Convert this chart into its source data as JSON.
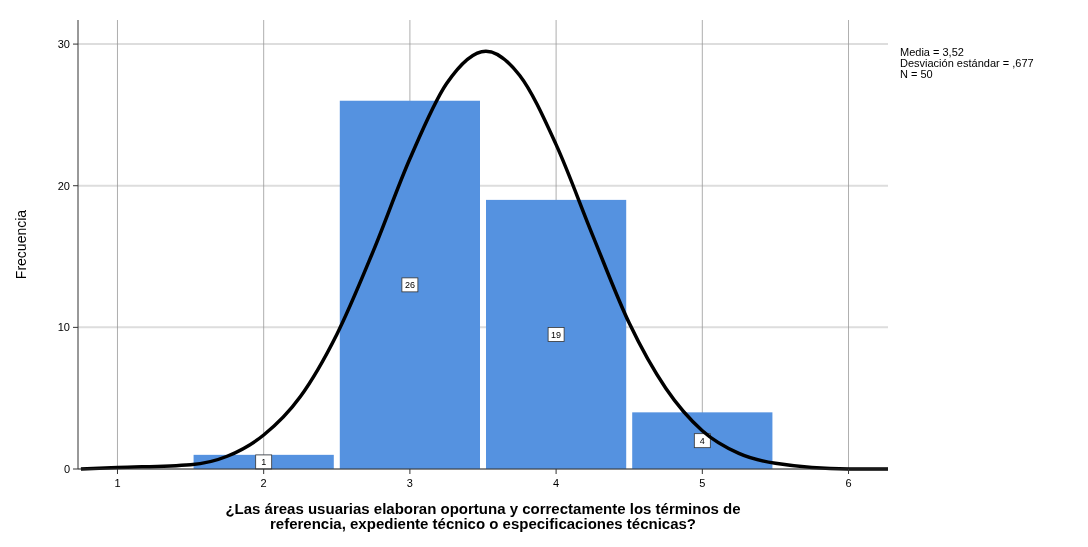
{
  "chart_data": {
    "type": "histogram",
    "xlabel": "¿Las áreas usuarias elaboran oportuna y correctamente los términos de referencia, expediente técnico o especificaciones técnicas?",
    "ylabel": "Frecuencia",
    "bins": [
      1.5,
      2.5,
      3.5,
      4.5,
      5.5
    ],
    "values": [
      1,
      26,
      19,
      4
    ],
    "color": "#5592e0",
    "value_labels": [
      "1",
      "26",
      "19",
      "4"
    ],
    "series": [
      {
        "type": "line",
        "color": "#000000",
        "x": [
          0.75,
          1,
          1.5,
          1.75,
          2,
          2.25,
          2.5,
          2.75,
          3,
          3.25,
          3.52,
          3.75,
          4,
          4.25,
          4.5,
          4.75,
          5,
          5.25,
          5.5,
          6,
          6.27
        ],
        "values": [
          0,
          0.1,
          0.3,
          0.9,
          2.4,
          5.1,
          9.5,
          15.4,
          21.9,
          27.2,
          29.5,
          27.8,
          22.9,
          16.5,
          10.3,
          5.7,
          2.7,
          1.1,
          0.4,
          0,
          0
        ]
      }
    ],
    "xlim": [
      0.73,
      6.27
    ],
    "ylim": [
      0,
      31.7
    ],
    "xticks": [
      1,
      2,
      3,
      4,
      5,
      6
    ],
    "yticks": [
      0,
      10,
      20,
      30
    ],
    "grid": true,
    "annotations": [
      "Media = 3,52",
      "Desviación estándar = ,677",
      "N = 50"
    ]
  }
}
